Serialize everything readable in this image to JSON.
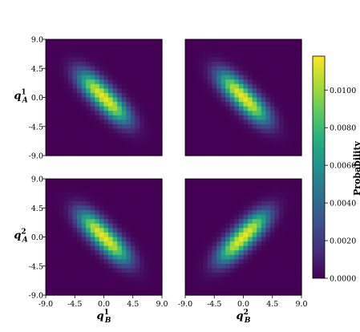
{
  "chart_data": {
    "type": "heatmap",
    "colormap": "viridis",
    "grid": false,
    "panels": [
      {
        "row": 0,
        "col": 0,
        "ylabel_base": "q",
        "ylabel_sub": "A",
        "ylabel_sup": "1",
        "orientation": "anti-diagonal",
        "peaks": [
          [
            -1.6,
            1.6
          ],
          [
            1.6,
            -1.6
          ]
        ]
      },
      {
        "row": 0,
        "col": 1,
        "orientation": "anti-diagonal",
        "peaks": [
          [
            -1.6,
            1.6
          ],
          [
            1.6,
            -1.6
          ]
        ]
      },
      {
        "row": 1,
        "col": 0,
        "ylabel_base": "q",
        "ylabel_sub": "A",
        "ylabel_sup": "2",
        "xlabel_base": "q",
        "xlabel_sub": "B",
        "xlabel_sup": "1",
        "orientation": "anti-diagonal",
        "peaks": [
          [
            -1.6,
            1.6
          ],
          [
            1.6,
            -1.6
          ]
        ]
      },
      {
        "row": 1,
        "col": 1,
        "xlabel_base": "q",
        "xlabel_sub": "B",
        "xlabel_sup": "2",
        "orientation": "diagonal",
        "peaks": [
          [
            -1.6,
            -1.6
          ],
          [
            1.6,
            1.6
          ]
        ]
      }
    ],
    "axis_range": [
      -9.0,
      9.0
    ],
    "ticks": [
      "-9.0",
      "-4.5",
      "0.0",
      "4.5",
      "9.0"
    ],
    "colorbar": {
      "label": "Probability",
      "range": [
        0.0,
        0.0118
      ],
      "ticks": [
        "0.0000",
        "0.0020",
        "0.0040",
        "0.0060",
        "0.0080",
        "0.0100"
      ]
    }
  }
}
